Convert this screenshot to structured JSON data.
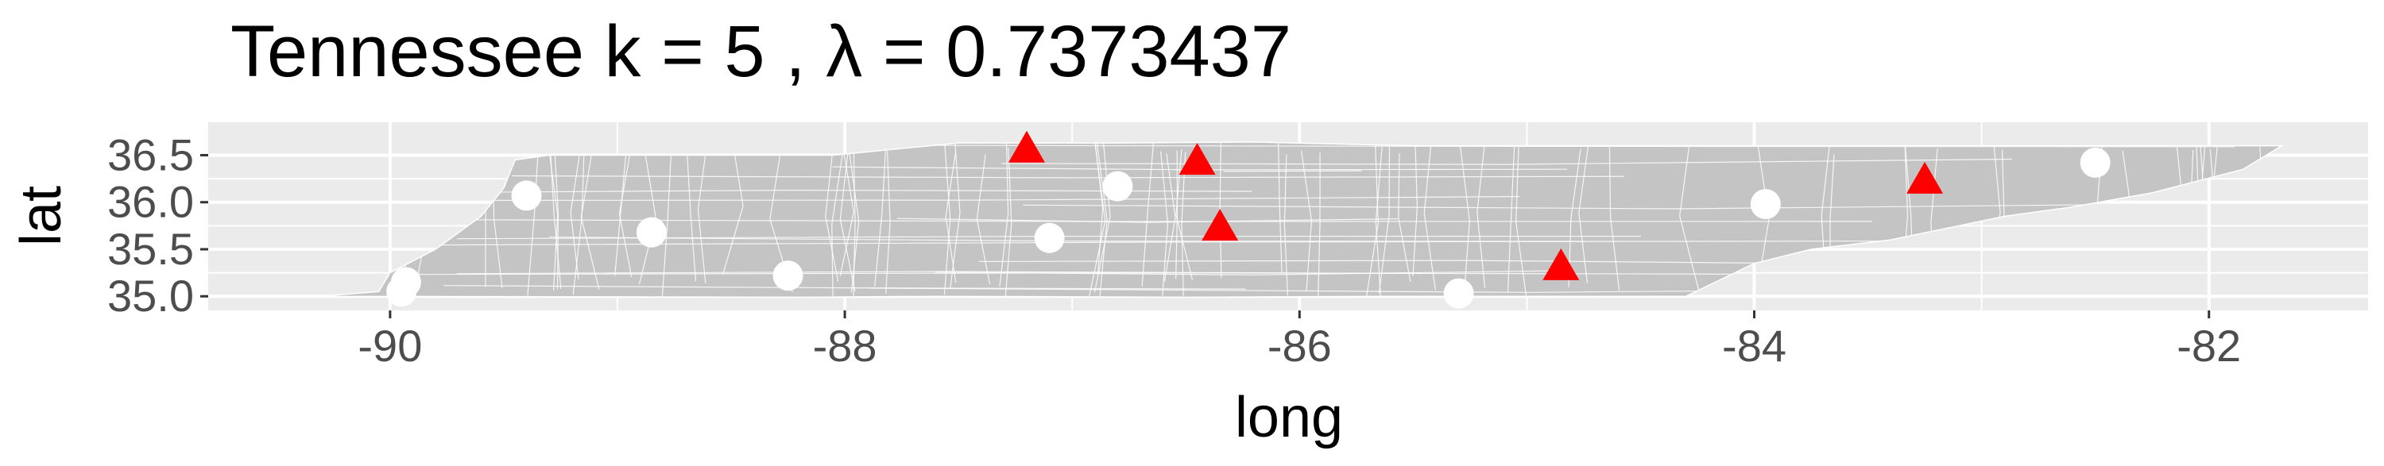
{
  "chart_data": {
    "type": "scatter",
    "title": "Tennessee  k =  5 ,  λ  =  0.7373437",
    "xlabel": "long",
    "ylabel": "lat",
    "xlim": [
      -90.8,
      -81.3
    ],
    "ylim": [
      34.85,
      36.85
    ],
    "x_ticks": [
      -90,
      -88,
      -86,
      -84,
      -82
    ],
    "x_tick_labels": [
      "-90",
      "-88",
      "-86",
      "-84",
      "-82"
    ],
    "y_ticks": [
      35.0,
      35.5,
      36.0,
      36.5
    ],
    "y_tick_labels": [
      "35.0",
      "35.5",
      "36.0",
      "36.5"
    ],
    "grid": true,
    "legend": "none",
    "colors": {
      "panel_background": "#ebebeb",
      "grid": "#ffffff",
      "region_fill": "#c4c4c4",
      "region_border": "#ffffff",
      "centers": "#ff0000",
      "points": "#ffffff"
    },
    "region_outline": [
      [
        -90.31,
        35.0
      ],
      [
        -90.05,
        35.05
      ],
      [
        -90.0,
        35.25
      ],
      [
        -89.8,
        35.5
      ],
      [
        -89.6,
        35.85
      ],
      [
        -89.5,
        36.15
      ],
      [
        -89.45,
        36.45
      ],
      [
        -89.3,
        36.5
      ],
      [
        -88.05,
        36.5
      ],
      [
        -87.5,
        36.63
      ],
      [
        -86.8,
        36.63
      ],
      [
        -86.2,
        36.64
      ],
      [
        -85.5,
        36.6
      ],
      [
        -84.7,
        36.6
      ],
      [
        -83.68,
        36.6
      ],
      [
        -82.3,
        36.6
      ],
      [
        -81.68,
        36.6
      ],
      [
        -81.85,
        36.35
      ],
      [
        -82.25,
        36.1
      ],
      [
        -82.6,
        35.95
      ],
      [
        -82.9,
        35.85
      ],
      [
        -83.4,
        35.6
      ],
      [
        -83.75,
        35.5
      ],
      [
        -84.0,
        35.35
      ],
      [
        -84.3,
        35.0
      ],
      [
        -85.6,
        35.0
      ],
      [
        -86.5,
        34.99
      ],
      [
        -87.6,
        35.0
      ],
      [
        -88.2,
        34.99
      ],
      [
        -90.31,
        35.0
      ]
    ],
    "series": [
      {
        "marker": "triangle",
        "points": [
          {
            "x": -87.2,
            "y": 36.55
          },
          {
            "x": -86.45,
            "y": 36.42
          },
          {
            "x": -86.35,
            "y": 35.72
          },
          {
            "x": -84.85,
            "y": 35.3
          },
          {
            "x": -83.25,
            "y": 36.22
          }
        ]
      },
      {
        "marker": "circle",
        "points": [
          {
            "x": -89.93,
            "y": 35.15
          },
          {
            "x": -89.95,
            "y": 35.05
          },
          {
            "x": -89.4,
            "y": 36.07
          },
          {
            "x": -88.85,
            "y": 35.68
          },
          {
            "x": -88.25,
            "y": 35.22
          },
          {
            "x": -87.1,
            "y": 35.62
          },
          {
            "x": -86.8,
            "y": 36.17
          },
          {
            "x": -85.3,
            "y": 35.03
          },
          {
            "x": -83.95,
            "y": 35.98
          },
          {
            "x": -82.5,
            "y": 36.42
          }
        ]
      }
    ]
  }
}
